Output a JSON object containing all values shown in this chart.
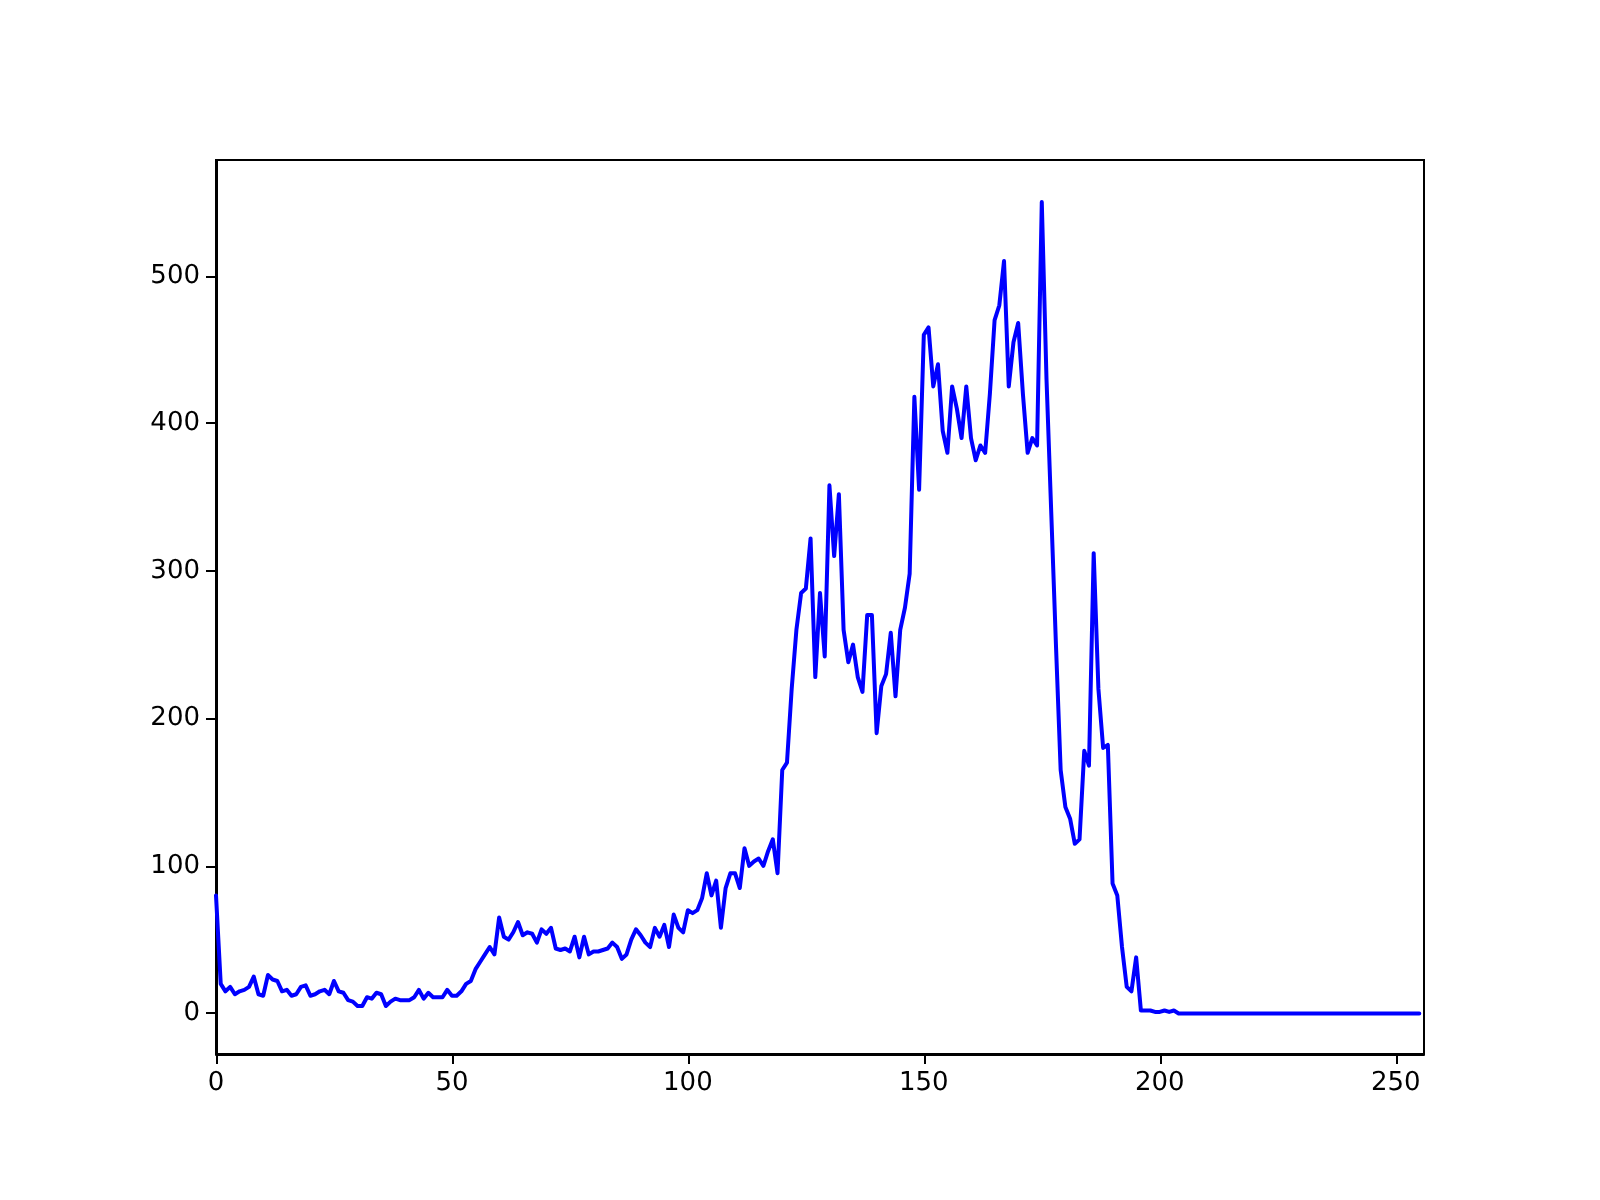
{
  "chart_data": {
    "type": "line",
    "x": [
      0,
      1,
      2,
      3,
      4,
      5,
      6,
      7,
      8,
      9,
      10,
      11,
      12,
      13,
      14,
      15,
      16,
      17,
      18,
      19,
      20,
      21,
      22,
      23,
      24,
      25,
      26,
      27,
      28,
      29,
      30,
      31,
      32,
      33,
      34,
      35,
      36,
      37,
      38,
      39,
      40,
      41,
      42,
      43,
      44,
      45,
      46,
      47,
      48,
      49,
      50,
      51,
      52,
      53,
      54,
      55,
      56,
      57,
      58,
      59,
      60,
      61,
      62,
      63,
      64,
      65,
      66,
      67,
      68,
      69,
      70,
      71,
      72,
      73,
      74,
      75,
      76,
      77,
      78,
      79,
      80,
      81,
      82,
      83,
      84,
      85,
      86,
      87,
      88,
      89,
      90,
      91,
      92,
      93,
      94,
      95,
      96,
      97,
      98,
      99,
      100,
      101,
      102,
      103,
      104,
      105,
      106,
      107,
      108,
      109,
      110,
      111,
      112,
      113,
      114,
      115,
      116,
      117,
      118,
      119,
      120,
      121,
      122,
      123,
      124,
      125,
      126,
      127,
      128,
      129,
      130,
      131,
      132,
      133,
      134,
      135,
      136,
      137,
      138,
      139,
      140,
      141,
      142,
      143,
      144,
      145,
      146,
      147,
      148,
      149,
      150,
      151,
      152,
      153,
      154,
      155,
      156,
      157,
      158,
      159,
      160,
      161,
      162,
      163,
      164,
      165,
      166,
      167,
      168,
      169,
      170,
      171,
      172,
      173,
      174,
      175,
      176,
      177,
      178,
      179,
      180,
      181,
      182,
      183,
      184,
      185,
      186,
      187,
      188,
      189,
      190,
      191,
      192,
      193,
      194,
      195,
      196,
      197,
      198,
      199,
      200,
      201,
      202,
      203,
      204,
      255
    ],
    "series": [
      {
        "color": "#0000ff",
        "values": [
          80,
          20,
          15,
          18,
          13,
          15,
          16,
          18,
          25,
          13,
          12,
          26,
          23,
          22,
          15,
          16,
          12,
          13,
          18,
          19,
          12,
          13,
          15,
          16,
          13,
          22,
          15,
          14,
          9,
          8,
          5,
          5,
          11,
          10,
          14,
          13,
          5,
          8,
          10,
          9,
          9,
          9,
          11,
          16,
          10,
          14,
          11,
          11,
          11,
          16,
          12,
          12,
          15,
          20,
          22,
          30,
          35,
          40,
          45,
          40,
          65,
          52,
          50,
          55,
          62,
          53,
          55,
          54,
          48,
          57,
          54,
          58,
          44,
          43,
          44,
          42,
          52,
          38,
          52,
          40,
          42,
          42,
          43,
          44,
          48,
          45,
          37,
          40,
          50,
          57,
          53,
          48,
          45,
          58,
          52,
          60,
          45,
          67,
          58,
          55,
          70,
          68,
          70,
          78,
          95,
          80,
          90,
          58,
          85,
          95,
          95,
          85,
          112,
          100,
          103,
          105,
          100,
          110,
          118,
          95,
          165,
          170,
          220,
          260,
          285,
          288,
          322,
          228,
          285,
          242,
          358,
          310,
          352,
          260,
          238,
          250,
          228,
          218,
          270,
          270,
          190,
          222,
          230,
          258,
          215,
          260,
          275,
          298,
          418,
          355,
          460,
          465,
          425,
          440,
          395,
          380,
          425,
          410,
          390,
          425,
          390,
          375,
          385,
          380,
          420,
          470,
          480,
          510,
          425,
          455,
          468,
          420,
          380,
          390,
          385,
          550,
          430,
          340,
          250,
          165,
          140,
          132,
          115,
          118,
          178,
          168,
          312,
          220,
          180,
          182,
          88,
          80,
          45,
          18,
          15,
          38,
          2,
          2,
          2,
          1,
          1,
          2,
          1,
          2,
          0,
          0
        ]
      }
    ],
    "xlim": [
      0,
      256
    ],
    "xticks": [
      0,
      50,
      100,
      150,
      200,
      250
    ],
    "ylim": [
      -27.5,
      578.5
    ],
    "yticks": [
      0,
      100,
      200,
      300,
      400,
      500
    ],
    "grid": false,
    "marker": "none",
    "line_style": "solid"
  }
}
